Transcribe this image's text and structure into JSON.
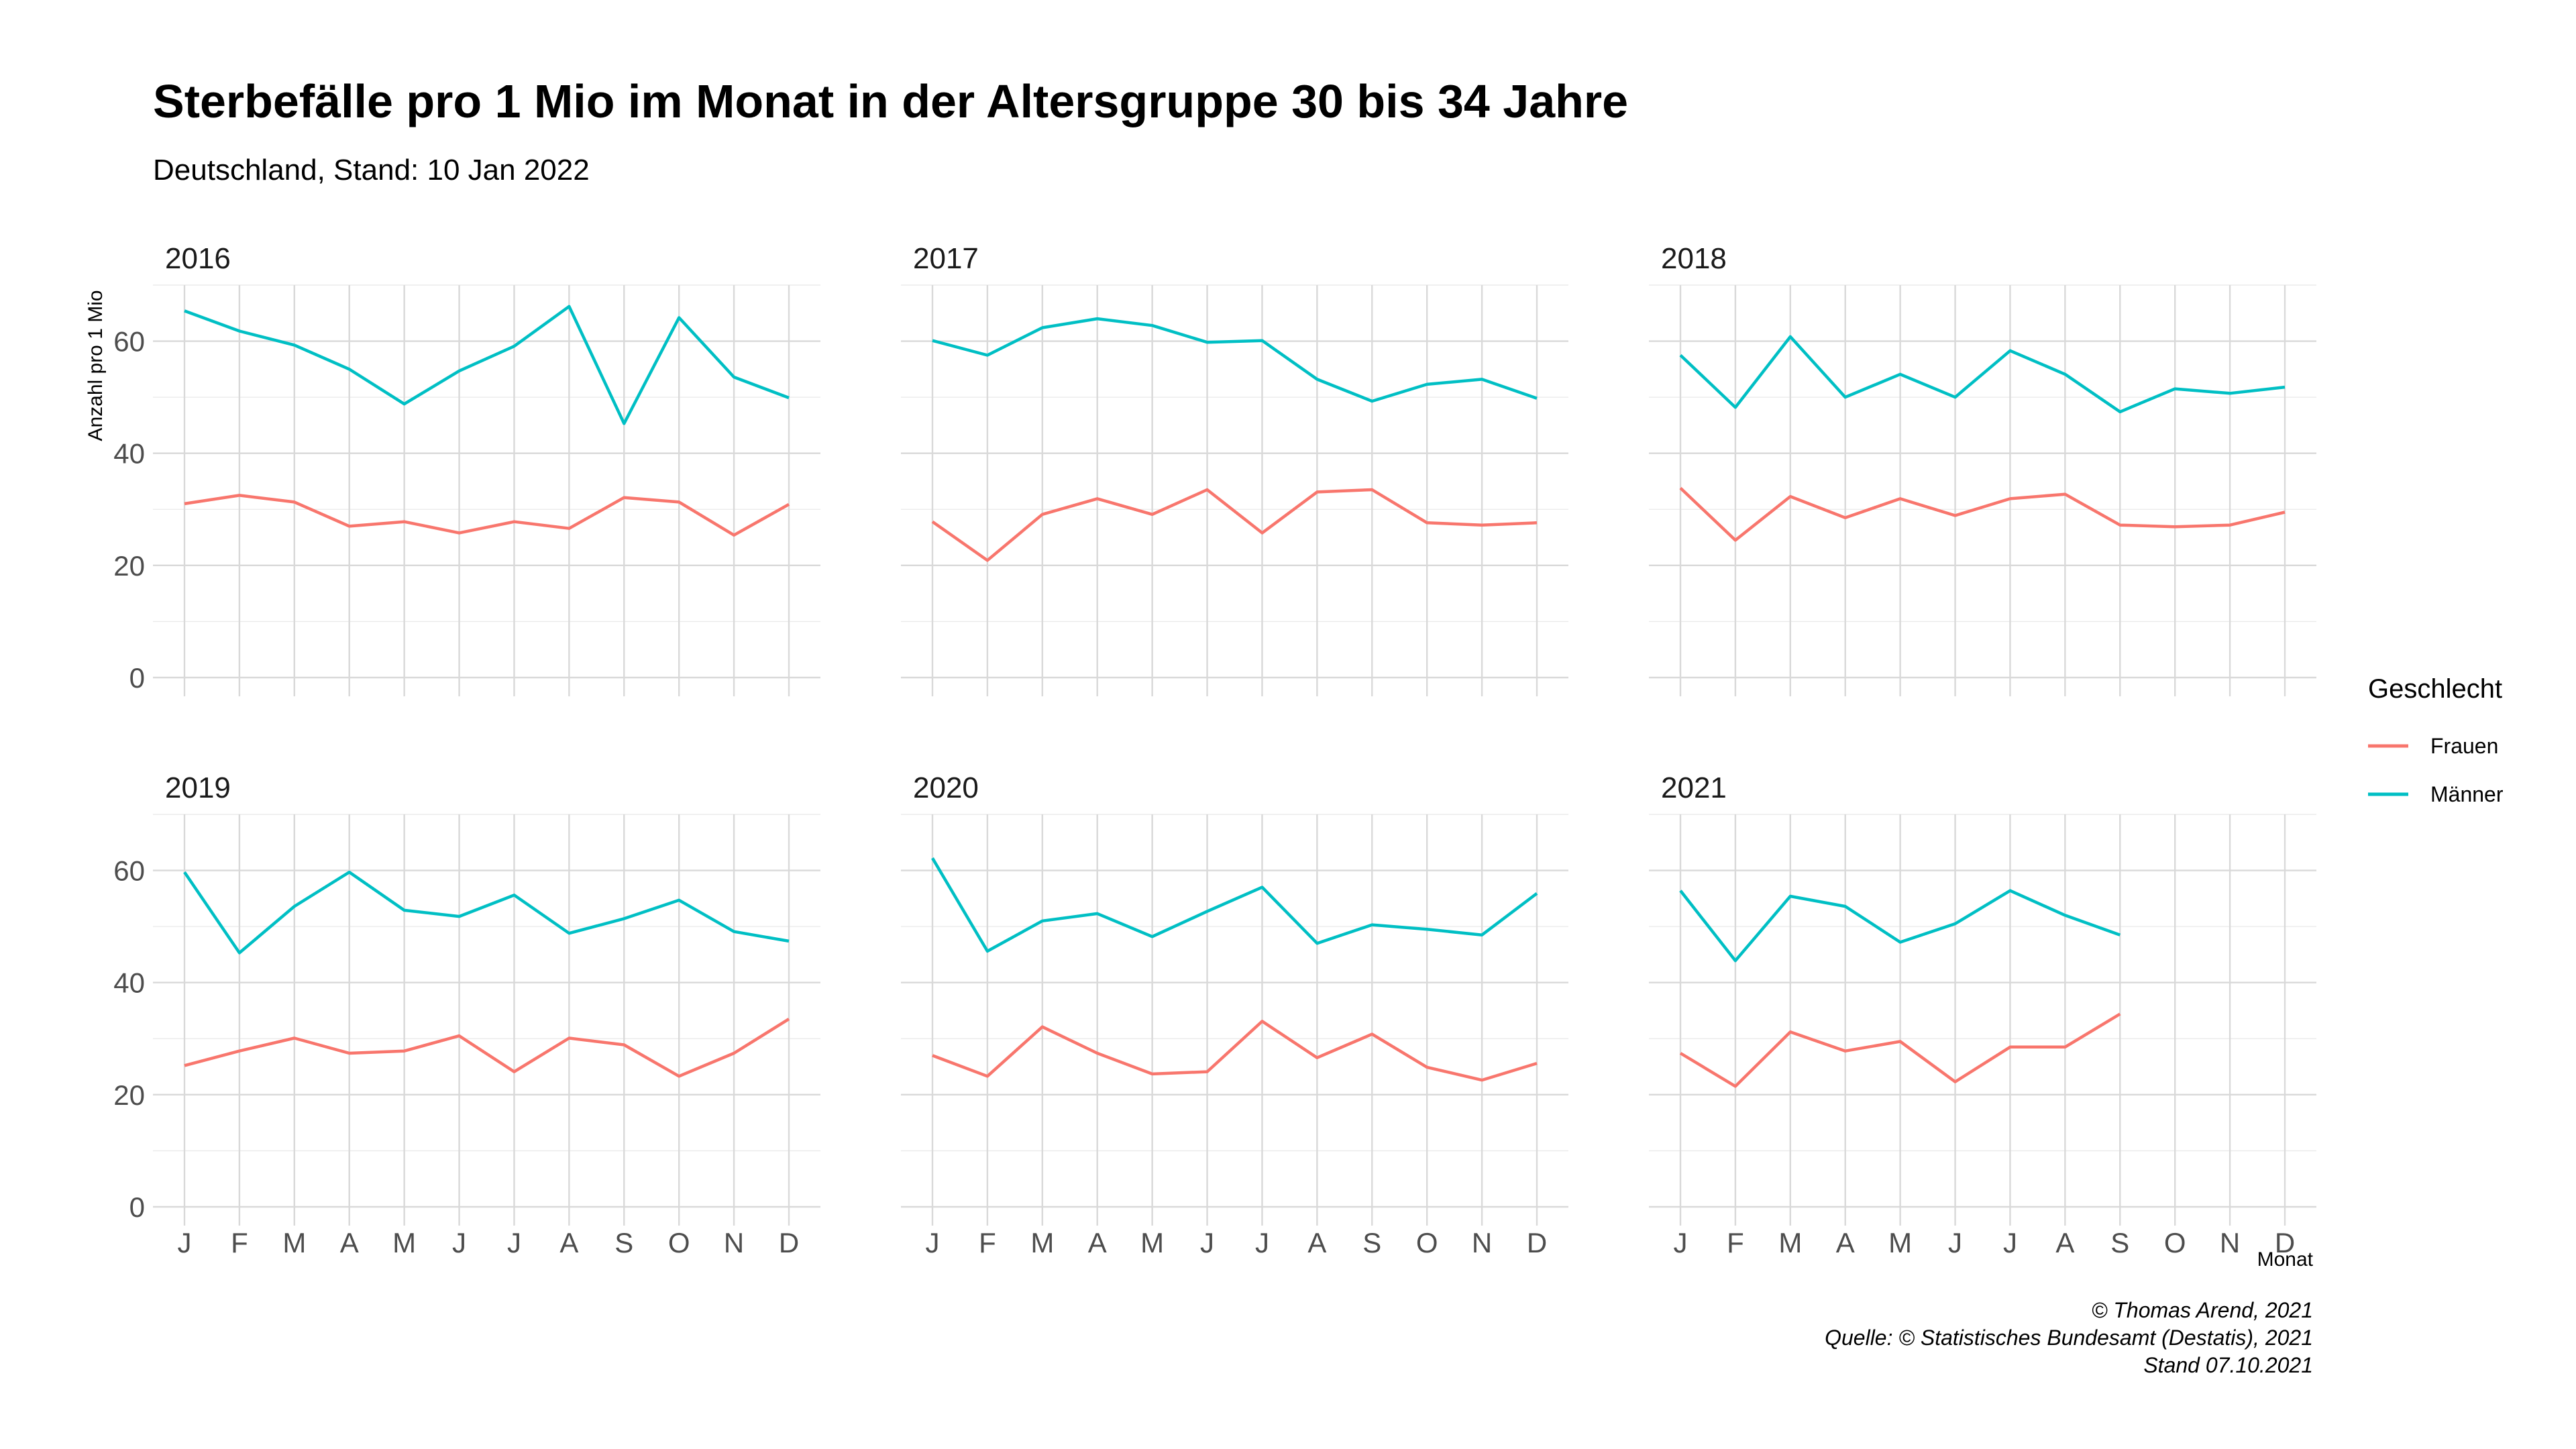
{
  "header": {
    "title": "Sterbefälle pro 1 Mio im Monat in der Altersgruppe 30 bis 34 Jahre",
    "subtitle": "Deutschland, Stand: 10 Jan 2022"
  },
  "caption": {
    "line1": "© Thomas Arend, 2021",
    "line2": "Quelle: © Statistisches Bundesamt (Destatis), 2021",
    "line3": "Stand 07.10.2021"
  },
  "chart_data": {
    "type": "line",
    "facet_by": "year",
    "months": [
      "J",
      "F",
      "M",
      "A",
      "M",
      "J",
      "J",
      "A",
      "S",
      "O",
      "N",
      "D"
    ],
    "xlabel": "Monat",
    "ylabel": "Anzahl pro 1 Mio",
    "ylim": [
      0,
      70
    ],
    "yticks": [
      0,
      20,
      40,
      60
    ],
    "grid": true,
    "legend": {
      "title": "Geschlecht",
      "position": "right",
      "entries": [
        {
          "name": "Frauen",
          "color": "#F8766D"
        },
        {
          "name": "Männer",
          "color": "#00BFC4"
        }
      ]
    },
    "facets": [
      {
        "year": "2016",
        "series": [
          {
            "name": "Frauen",
            "values": [
              31,
              32.5,
              31.3,
              27,
              27.8,
              25.8,
              27.8,
              26.6,
              32.1,
              31.3,
              25.4,
              30.9
            ]
          },
          {
            "name": "Männer",
            "values": [
              65.4,
              61.8,
              59.3,
              55,
              48.8,
              54.7,
              59.1,
              66.2,
              45.3,
              64.2,
              53.6,
              49.9
            ]
          }
        ]
      },
      {
        "year": "2017",
        "series": [
          {
            "name": "Frauen",
            "values": [
              27.8,
              20.9,
              29.1,
              31.9,
              29.1,
              33.5,
              25.8,
              33.1,
              33.5,
              27.6,
              27.2,
              27.6
            ]
          },
          {
            "name": "Männer",
            "values": [
              60.1,
              57.5,
              62.4,
              64,
              62.8,
              59.8,
              60.1,
              53.2,
              49.3,
              52.3,
              53.2,
              49.8
            ]
          }
        ]
      },
      {
        "year": "2018",
        "series": [
          {
            "name": "Frauen",
            "values": [
              33.8,
              24.5,
              32.3,
              28.5,
              31.9,
              28.9,
              31.9,
              32.7,
              27.2,
              26.9,
              27.2,
              29.5
            ]
          },
          {
            "name": "Männer",
            "values": [
              57.5,
              48.2,
              60.8,
              50,
              54.1,
              50,
              58.3,
              54.1,
              47.4,
              51.5,
              50.7,
              51.8
            ]
          }
        ]
      },
      {
        "year": "2019",
        "series": [
          {
            "name": "Frauen",
            "values": [
              25.2,
              27.8,
              30.1,
              27.4,
              27.8,
              30.5,
              24.1,
              30.1,
              28.9,
              23.3,
              27.4,
              33.5
            ]
          },
          {
            "name": "Männer",
            "values": [
              59.7,
              45.3,
              53.6,
              59.7,
              52.9,
              51.8,
              55.6,
              48.8,
              51.4,
              54.7,
              49.1,
              47.4
            ]
          }
        ]
      },
      {
        "year": "2020",
        "series": [
          {
            "name": "Frauen",
            "values": [
              27,
              23.3,
              32.1,
              27.4,
              23.7,
              24.1,
              33.1,
              26.6,
              30.8,
              24.9,
              22.6,
              25.6
            ]
          },
          {
            "name": "Männer",
            "values": [
              62.2,
              45.6,
              51,
              52.3,
              48.2,
              52.7,
              57,
              47,
              50.3,
              49.5,
              48.5,
              55.9
            ]
          }
        ]
      },
      {
        "year": "2021",
        "series": [
          {
            "name": "Frauen",
            "values": [
              27.4,
              21.5,
              31.2,
              27.8,
              29.5,
              22.3,
              28.5,
              28.5,
              34.4,
              null,
              null,
              null
            ]
          },
          {
            "name": "Männer",
            "values": [
              56.4,
              43.9,
              55.4,
              53.6,
              47.2,
              50.5,
              56.4,
              52,
              48.5,
              null,
              null,
              null
            ]
          }
        ]
      }
    ]
  }
}
